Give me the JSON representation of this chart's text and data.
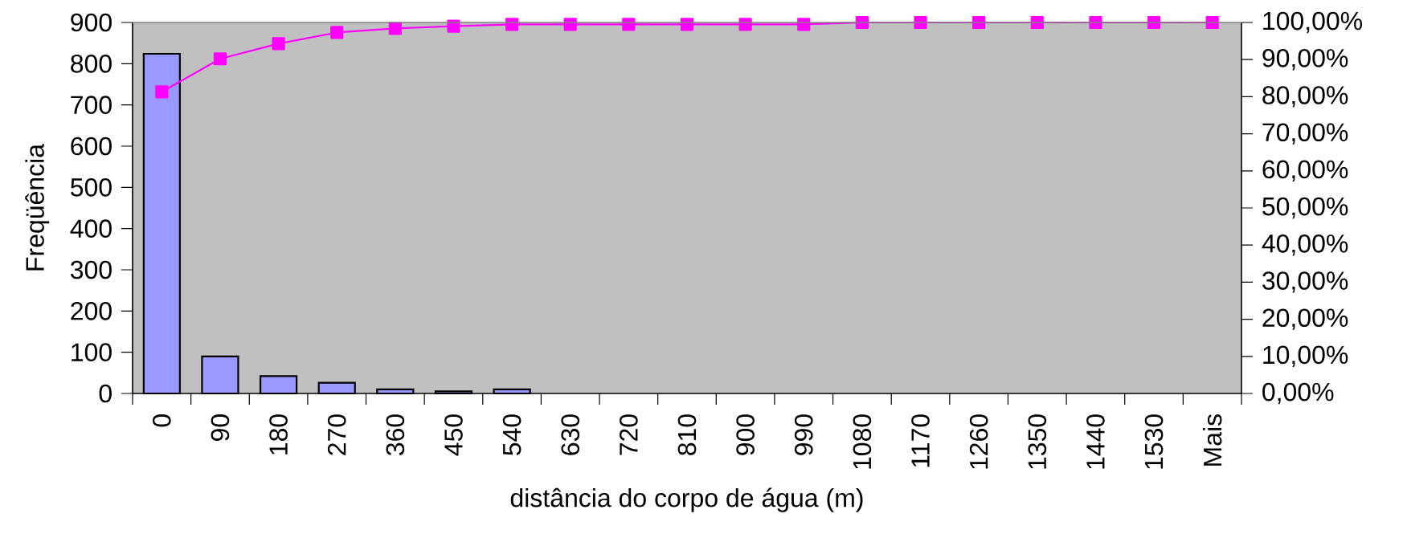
{
  "chart_data": {
    "type": "bar",
    "xlabel": "distância do corpo de água (m)",
    "ylabel": "Freqüência",
    "categories": [
      "0",
      "90",
      "180",
      "270",
      "360",
      "450",
      "540",
      "630",
      "720",
      "810",
      "900",
      "990",
      "1080",
      "1170",
      "1260",
      "1350",
      "1440",
      "1530",
      "Mais"
    ],
    "series": [
      {
        "color": "#9999ff",
        "values": [
          824,
          90,
          42,
          26,
          10,
          5,
          10,
          0,
          0,
          0,
          0,
          0,
          0,
          0,
          0,
          0,
          0,
          0,
          0
        ]
      },
      {
        "type": "line",
        "axis": "y2",
        "color": "#ff00ff",
        "marker": "square",
        "values": [
          81.3,
          90.2,
          94.3,
          97.3,
          98.4,
          99.0,
          99.5,
          99.5,
          99.5,
          99.5,
          99.5,
          99.5,
          100,
          100,
          100,
          100,
          100,
          100,
          100
        ]
      }
    ],
    "ylim": [
      0,
      900
    ],
    "yticks": [
      0,
      100,
      200,
      300,
      400,
      500,
      600,
      700,
      800,
      900
    ],
    "y2lim": [
      0,
      100
    ],
    "y2ticks": [
      {
        "value": 0,
        "label": "0,00%"
      },
      {
        "value": 10,
        "label": "10,00%"
      },
      {
        "value": 20,
        "label": "20,00%"
      },
      {
        "value": 30,
        "label": "30,00%"
      },
      {
        "value": 40,
        "label": "40,00%"
      },
      {
        "value": 50,
        "label": "50,00%"
      },
      {
        "value": 60,
        "label": "60,00%"
      },
      {
        "value": 70,
        "label": "70,00%"
      },
      {
        "value": 80,
        "label": "80,00%"
      },
      {
        "value": 90,
        "label": "90,00%"
      },
      {
        "value": 100,
        "label": "100,00%"
      }
    ]
  }
}
